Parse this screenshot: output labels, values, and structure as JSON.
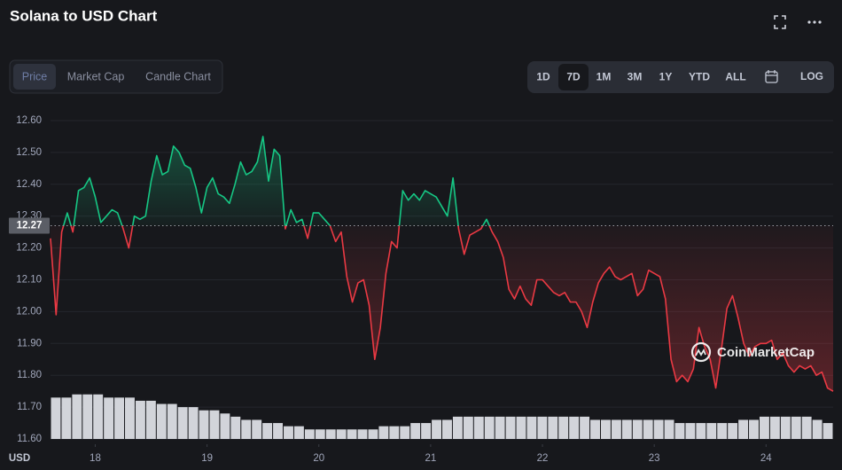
{
  "ui": {
    "title": "Solana to USD Chart",
    "tabs": [
      "Price",
      "Market Cap",
      "Candle Chart"
    ],
    "active_tab": 0,
    "ranges": [
      "1D",
      "7D",
      "1M",
      "3M",
      "1Y",
      "YTD",
      "ALL"
    ],
    "active_range": 1,
    "log_button": "LOG",
    "watermark": "CoinMarketCap"
  },
  "chart_data": {
    "type": "area",
    "unit_label": "USD",
    "xlim": [
      17.6,
      24.6
    ],
    "xticks": [
      18,
      19,
      20,
      21,
      22,
      23,
      24
    ],
    "ylim": [
      11.6,
      12.6
    ],
    "yticks": [
      {
        "value": 11.6,
        "label": "11.60"
      },
      {
        "value": 11.7,
        "label": "11.70"
      },
      {
        "value": 11.8,
        "label": "11.80"
      },
      {
        "value": 11.9,
        "label": "11.90"
      },
      {
        "value": 12.0,
        "label": "12.00"
      },
      {
        "value": 12.1,
        "label": "12.10"
      },
      {
        "value": 12.2,
        "label": "12.20"
      },
      {
        "value": 12.3,
        "label": "12.30"
      },
      {
        "value": 12.4,
        "label": "12.40"
      },
      {
        "value": 12.5,
        "label": "12.50"
      },
      {
        "value": 12.6,
        "label": "12.60"
      }
    ],
    "grid": true,
    "baseline": {
      "value": 12.27,
      "label": "12.27"
    },
    "series": [
      {
        "color": "#16c784",
        "down_color": "#ea3943",
        "x": [
          17.6,
          17.65,
          17.7,
          17.75,
          17.8,
          17.85,
          17.9,
          17.95,
          18.0,
          18.05,
          18.1,
          18.15,
          18.2,
          18.25,
          18.3,
          18.35,
          18.4,
          18.45,
          18.5,
          18.55,
          18.6,
          18.65,
          18.7,
          18.75,
          18.8,
          18.85,
          18.9,
          18.95,
          19.0,
          19.05,
          19.1,
          19.15,
          19.2,
          19.25,
          19.3,
          19.35,
          19.4,
          19.45,
          19.5,
          19.55,
          19.6,
          19.65,
          19.7,
          19.75,
          19.8,
          19.85,
          19.9,
          19.95,
          20.0,
          20.05,
          20.1,
          20.15,
          20.2,
          20.25,
          20.3,
          20.35,
          20.4,
          20.45,
          20.5,
          20.55,
          20.6,
          20.65,
          20.7,
          20.75,
          20.8,
          20.85,
          20.9,
          20.95,
          21.0,
          21.05,
          21.1,
          21.15,
          21.2,
          21.25,
          21.3,
          21.35,
          21.4,
          21.45,
          21.5,
          21.55,
          21.6,
          21.65,
          21.7,
          21.75,
          21.8,
          21.85,
          21.9,
          21.95,
          22.0,
          22.05,
          22.1,
          22.15,
          22.2,
          22.25,
          22.3,
          22.35,
          22.4,
          22.45,
          22.5,
          22.55,
          22.6,
          22.65,
          22.7,
          22.75,
          22.8,
          22.85,
          22.9,
          22.95,
          23.0,
          23.05,
          23.1,
          23.15,
          23.2,
          23.25,
          23.3,
          23.35,
          23.4,
          23.45,
          23.5,
          23.55,
          23.6,
          23.65,
          23.7,
          23.75,
          23.8,
          23.85,
          23.9,
          23.95,
          24.0,
          24.05,
          24.1,
          24.15,
          24.2,
          24.25,
          24.3,
          24.35,
          24.4,
          24.45,
          24.5,
          24.55,
          24.6
        ],
        "values": [
          12.23,
          11.99,
          12.25,
          12.31,
          12.25,
          12.38,
          12.39,
          12.42,
          12.36,
          12.28,
          12.3,
          12.32,
          12.31,
          12.26,
          12.2,
          12.3,
          12.29,
          12.3,
          12.41,
          12.49,
          12.43,
          12.44,
          12.52,
          12.5,
          12.46,
          12.45,
          12.39,
          12.31,
          12.39,
          12.42,
          12.37,
          12.36,
          12.34,
          12.4,
          12.47,
          12.43,
          12.44,
          12.47,
          12.55,
          12.41,
          12.51,
          12.49,
          12.26,
          12.32,
          12.28,
          12.29,
          12.23,
          12.31,
          12.31,
          12.29,
          12.27,
          12.22,
          12.25,
          12.11,
          12.03,
          12.09,
          12.1,
          12.02,
          11.85,
          11.95,
          12.12,
          12.22,
          12.2,
          12.38,
          12.35,
          12.37,
          12.35,
          12.38,
          12.37,
          12.36,
          12.33,
          12.3,
          12.42,
          12.26,
          12.18,
          12.24,
          12.25,
          12.26,
          12.29,
          12.25,
          12.22,
          12.17,
          12.07,
          12.04,
          12.08,
          12.04,
          12.02,
          12.1,
          12.1,
          12.08,
          12.06,
          12.05,
          12.06,
          12.03,
          12.03,
          12.0,
          11.95,
          12.03,
          12.09,
          12.12,
          12.14,
          12.11,
          12.1,
          12.11,
          12.12,
          12.05,
          12.07,
          12.13,
          12.12,
          12.11,
          12.04,
          11.85,
          11.78,
          11.8,
          11.78,
          11.82,
          11.95,
          11.89,
          11.85,
          11.76,
          11.88,
          12.01,
          12.05,
          11.98,
          11.9,
          11.86,
          11.89,
          11.9,
          11.9,
          11.91,
          11.85,
          11.87,
          11.83,
          11.81,
          11.83,
          11.82,
          11.83,
          11.8,
          11.81,
          11.76,
          11.75
        ]
      }
    ],
    "volume": {
      "color": "#d2d4da",
      "values": [
        11.73,
        11.73,
        11.74,
        11.74,
        11.74,
        11.73,
        11.73,
        11.73,
        11.72,
        11.72,
        11.71,
        11.71,
        11.7,
        11.7,
        11.69,
        11.69,
        11.68,
        11.67,
        11.66,
        11.66,
        11.65,
        11.65,
        11.64,
        11.64,
        11.63,
        11.63,
        11.63,
        11.63,
        11.63,
        11.63,
        11.63,
        11.64,
        11.64,
        11.64,
        11.65,
        11.65,
        11.66,
        11.66,
        11.67,
        11.67,
        11.67,
        11.67,
        11.67,
        11.67,
        11.67,
        11.67,
        11.67,
        11.67,
        11.67,
        11.67,
        11.67,
        11.66,
        11.66,
        11.66,
        11.66,
        11.66,
        11.66,
        11.66,
        11.66,
        11.65,
        11.65,
        11.65,
        11.65,
        11.65,
        11.65,
        11.66,
        11.66,
        11.67,
        11.67,
        11.67,
        11.67,
        11.67,
        11.66,
        11.65
      ]
    }
  }
}
